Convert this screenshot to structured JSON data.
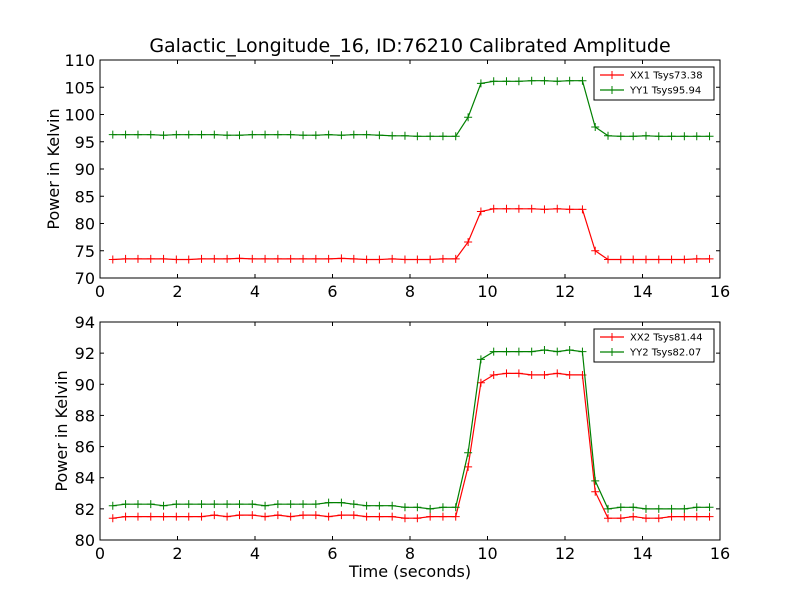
{
  "chart_data": [
    {
      "type": "line",
      "title": "Galactic_Longitude_16, ID:76210 Calibrated Amplitude",
      "xlabel": "",
      "ylabel": "Power in Kelvin",
      "xlim": [
        0,
        16
      ],
      "ylim": [
        70,
        110
      ],
      "xticks": [
        0,
        2,
        4,
        6,
        8,
        10,
        12,
        14,
        16
      ],
      "yticks": [
        70,
        75,
        80,
        85,
        90,
        95,
        100,
        105,
        110
      ],
      "legend_position": "top-right",
      "x": [
        0.33,
        0.66,
        0.98,
        1.31,
        1.64,
        1.97,
        2.29,
        2.62,
        2.95,
        3.28,
        3.6,
        3.93,
        4.26,
        4.59,
        4.92,
        5.24,
        5.57,
        5.9,
        6.23,
        6.55,
        6.88,
        7.21,
        7.54,
        7.87,
        8.19,
        8.52,
        8.85,
        9.18,
        9.5,
        9.83,
        10.16,
        10.49,
        10.81,
        11.14,
        11.47,
        11.8,
        12.12,
        12.45,
        12.78,
        13.11,
        13.44,
        13.76,
        14.09,
        14.42,
        14.75,
        15.08,
        15.4,
        15.73
      ],
      "series": [
        {
          "name": "XX1 Tsys73.38",
          "color": "#ff0000",
          "values": [
            73.4,
            73.5,
            73.5,
            73.5,
            73.5,
            73.4,
            73.4,
            73.5,
            73.5,
            73.5,
            73.6,
            73.5,
            73.5,
            73.5,
            73.5,
            73.5,
            73.5,
            73.5,
            73.6,
            73.5,
            73.4,
            73.4,
            73.5,
            73.4,
            73.4,
            73.4,
            73.5,
            73.5,
            76.6,
            82.2,
            82.7,
            82.7,
            82.7,
            82.7,
            82.6,
            82.7,
            82.6,
            82.6,
            75.0,
            73.4,
            73.4,
            73.4,
            73.4,
            73.4,
            73.4,
            73.4,
            73.5,
            73.5
          ]
        },
        {
          "name": "YY1 Tsys95.94",
          "color": "#008000",
          "values": [
            96.3,
            96.3,
            96.3,
            96.3,
            96.2,
            96.3,
            96.3,
            96.3,
            96.3,
            96.2,
            96.2,
            96.3,
            96.3,
            96.3,
            96.3,
            96.2,
            96.2,
            96.3,
            96.2,
            96.3,
            96.3,
            96.2,
            96.1,
            96.1,
            96.0,
            96.0,
            96.0,
            96.0,
            99.5,
            105.7,
            106.1,
            106.1,
            106.1,
            106.2,
            106.2,
            106.1,
            106.2,
            106.2,
            97.7,
            96.1,
            96.0,
            96.0,
            96.1,
            96.0,
            96.0,
            96.0,
            96.0,
            96.0
          ]
        }
      ]
    },
    {
      "type": "line",
      "title": "",
      "xlabel": "Time (seconds)",
      "ylabel": "Power in Kelvin",
      "xlim": [
        0,
        16
      ],
      "ylim": [
        80,
        94
      ],
      "xticks": [
        0,
        2,
        4,
        6,
        8,
        10,
        12,
        14,
        16
      ],
      "yticks": [
        80,
        82,
        84,
        86,
        88,
        90,
        92,
        94
      ],
      "legend_position": "top-right",
      "x": [
        0.33,
        0.66,
        0.98,
        1.31,
        1.64,
        1.97,
        2.29,
        2.62,
        2.95,
        3.28,
        3.6,
        3.93,
        4.26,
        4.59,
        4.92,
        5.24,
        5.57,
        5.9,
        6.23,
        6.55,
        6.88,
        7.21,
        7.54,
        7.87,
        8.19,
        8.52,
        8.85,
        9.18,
        9.5,
        9.83,
        10.16,
        10.49,
        10.81,
        11.14,
        11.47,
        11.8,
        12.12,
        12.45,
        12.78,
        13.11,
        13.44,
        13.76,
        14.09,
        14.42,
        14.75,
        15.08,
        15.4,
        15.73
      ],
      "series": [
        {
          "name": "XX2 Tsys81.44",
          "color": "#ff0000",
          "values": [
            81.4,
            81.5,
            81.5,
            81.5,
            81.5,
            81.5,
            81.5,
            81.5,
            81.6,
            81.5,
            81.6,
            81.6,
            81.5,
            81.6,
            81.5,
            81.6,
            81.6,
            81.5,
            81.6,
            81.6,
            81.5,
            81.5,
            81.5,
            81.4,
            81.4,
            81.5,
            81.5,
            81.5,
            84.7,
            90.1,
            90.6,
            90.7,
            90.7,
            90.6,
            90.6,
            90.7,
            90.6,
            90.6,
            83.1,
            81.4,
            81.4,
            81.5,
            81.4,
            81.4,
            81.5,
            81.5,
            81.5,
            81.5
          ]
        },
        {
          "name": "YY2 Tsys82.07",
          "color": "#008000",
          "values": [
            82.2,
            82.3,
            82.3,
            82.3,
            82.2,
            82.3,
            82.3,
            82.3,
            82.3,
            82.3,
            82.3,
            82.3,
            82.2,
            82.3,
            82.3,
            82.3,
            82.3,
            82.4,
            82.4,
            82.3,
            82.2,
            82.2,
            82.2,
            82.1,
            82.1,
            82.0,
            82.1,
            82.1,
            85.6,
            91.6,
            92.1,
            92.1,
            92.1,
            92.1,
            92.2,
            92.1,
            92.2,
            92.1,
            83.8,
            82.0,
            82.1,
            82.1,
            82.0,
            82.0,
            82.0,
            82.0,
            82.1,
            82.1
          ]
        }
      ]
    }
  ]
}
